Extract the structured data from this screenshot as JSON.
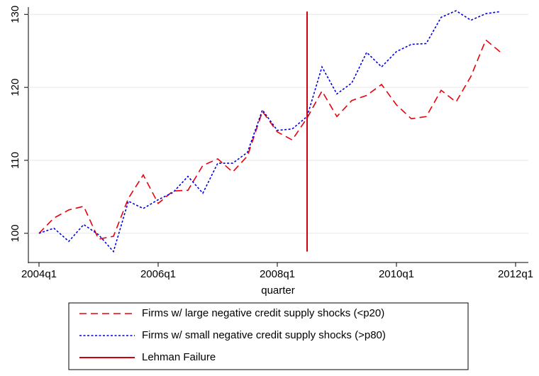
{
  "chart_data": {
    "type": "line",
    "xlabel": "quarter",
    "x": [
      "2004q1",
      "2004q2",
      "2004q3",
      "2004q4",
      "2005q1",
      "2005q2",
      "2005q3",
      "2005q4",
      "2006q1",
      "2006q2",
      "2006q3",
      "2006q4",
      "2007q1",
      "2007q2",
      "2007q3",
      "2007q4",
      "2008q1",
      "2008q2",
      "2008q3",
      "2008q4",
      "2009q1",
      "2009q2",
      "2009q3",
      "2009q4",
      "2010q1",
      "2010q2",
      "2010q3",
      "2010q4",
      "2011q1",
      "2011q2",
      "2011q3",
      "2011q4"
    ],
    "xlim": [
      "2004q1",
      "2012q1"
    ],
    "xticks": [
      "2004q1",
      "2006q1",
      "2008q1",
      "2010q1",
      "2012q1"
    ],
    "ylim": [
      96,
      131
    ],
    "yticks": [
      100,
      110,
      120,
      130
    ],
    "grid": true,
    "series": [
      {
        "name": "Firms w/ large negative credit supply shocks (<p20)",
        "color": "#e8000b",
        "line_style": "dash",
        "values": [
          100,
          102.1,
          103.2,
          103.7,
          99.2,
          99.6,
          104.8,
          108.0,
          104.1,
          105.8,
          105.9,
          109.3,
          110.2,
          108.4,
          110.6,
          116.7,
          113.9,
          112.8,
          115.8,
          119.5,
          116.0,
          118.2,
          118.9,
          120.4,
          117.6,
          115.7,
          116.0,
          119.6,
          118.0,
          121.5,
          126.5,
          124.8
        ]
      },
      {
        "name": "Firms w/ small negative credit supply shocks (>p80)",
        "color": "#0000e0",
        "line_style": "dot",
        "values": [
          100,
          100.7,
          98.9,
          101.2,
          99.8,
          97.5,
          104.4,
          103.4,
          104.6,
          105.6,
          107.8,
          105.5,
          109.6,
          109.6,
          111.1,
          116.9,
          114.1,
          114.3,
          116.0,
          122.8,
          119.1,
          120.6,
          124.8,
          122.8,
          124.9,
          125.9,
          126.0,
          129.6,
          130.5,
          129.2,
          130.1,
          130.4
        ]
      },
      {
        "name": "Lehman Failure",
        "color": "#d00010",
        "line_style": "solid",
        "x": [
          "2008q3",
          "2008q3"
        ],
        "values": [
          97.5,
          130.4
        ]
      }
    ]
  }
}
